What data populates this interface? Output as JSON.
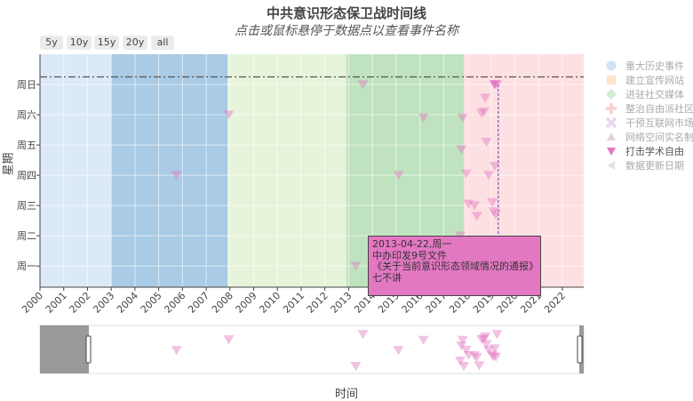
{
  "title": "中共意识形态保卫战时间线",
  "subtitle": "点击或鼠标悬停于数据点以查看事件名称",
  "range_buttons": [
    "5y",
    "10y",
    "15y",
    "20y",
    "all"
  ],
  "legend": [
    {
      "label": "重大历史事件",
      "symbol": "circle",
      "color": "#a8c8e8"
    },
    {
      "label": "建立宣传网站",
      "symbol": "square",
      "color": "#ffcc99"
    },
    {
      "label": "进驻社交媒体",
      "symbol": "diamond",
      "color": "#a9dca9"
    },
    {
      "label": "整治自由派社区",
      "symbol": "cross",
      "color": "#f4a9a9"
    },
    {
      "label": "干预互联网市场",
      "symbol": "x",
      "color": "#c9b3e0"
    },
    {
      "label": "网络空间实名制",
      "symbol": "triangle-up",
      "color": "#c9aaa5"
    },
    {
      "label": "打击学术自由",
      "symbol": "triangle-down",
      "color": "#e377c2"
    },
    {
      "label": "数据更新日期",
      "symbol": "triangle-left",
      "color": "#c8c8c8"
    }
  ],
  "tooltip": {
    "line1": "2013-04-22,周一",
    "line2": "中办印发9号文件",
    "line3": "《关于当前意识形态领域情况的通报》",
    "line4": "七不讲"
  },
  "chart_data": {
    "type": "scatter",
    "title": "中共意识形态保卫战时间线",
    "subtitle": "点击或鼠标悬停于数据点以查看事件名称",
    "xlabel": "时间",
    "ylabel": "星期",
    "x_ticks": [
      "2000",
      "2001",
      "2002",
      "2003",
      "2004",
      "2005",
      "2006",
      "2007",
      "2008",
      "2009",
      "2010",
      "2011",
      "2012",
      "2013",
      "2014",
      "2015",
      "2016",
      "2017",
      "2018",
      "2019",
      "2020",
      "2021",
      "2022"
    ],
    "y_ticks": [
      "周一",
      "周二",
      "周三",
      "周四",
      "周五",
      "周六",
      "周日"
    ],
    "xlim": [
      2000.0,
      2022.9
    ],
    "ylim": [
      0.3,
      8.0
    ],
    "grid": true,
    "legend_position": "right",
    "bands": [
      {
        "x0": 2000.0,
        "x1": 2003.0,
        "color": "#dce9f7"
      },
      {
        "x0": 2003.0,
        "x1": 2007.9,
        "color": "#a9cbe5"
      },
      {
        "x0": 2007.9,
        "x1": 2012.9,
        "color": "#e6f4da"
      },
      {
        "x0": 2012.9,
        "x1": 2017.85,
        "color": "#bfe3bf"
      },
      {
        "x0": 2017.85,
        "x1": 2022.9,
        "color": "#fde0e2"
      }
    ],
    "reference_line_y": 7.25,
    "series": [
      {
        "name": "打击学术自由",
        "marker": "triangle-down",
        "color": "#e377c2",
        "points": [
          {
            "x": 2005.75,
            "y": 4
          },
          {
            "x": 2007.95,
            "y": 6
          },
          {
            "x": 2013.3,
            "y": 1
          },
          {
            "x": 2013.6,
            "y": 7
          },
          {
            "x": 2015.1,
            "y": 4
          },
          {
            "x": 2016.15,
            "y": 5.9
          },
          {
            "x": 2017.7,
            "y": 2
          },
          {
            "x": 2017.75,
            "y": 4.85
          },
          {
            "x": 2017.8,
            "y": 5.9
          },
          {
            "x": 2017.85,
            "y": 1
          },
          {
            "x": 2017.95,
            "y": 4.05
          },
          {
            "x": 2018.05,
            "y": 3.05
          },
          {
            "x": 2018.3,
            "y": 3
          },
          {
            "x": 2018.4,
            "y": 2.65
          },
          {
            "x": 2018.5,
            "y": 1.1
          },
          {
            "x": 2018.6,
            "y": 6.05
          },
          {
            "x": 2018.7,
            "y": 6.1
          },
          {
            "x": 2018.75,
            "y": 6.55
          },
          {
            "x": 2018.8,
            "y": 5.1
          },
          {
            "x": 2018.9,
            "y": 4
          },
          {
            "x": 2019.05,
            "y": 3.1
          },
          {
            "x": 2019.1,
            "y": 2.8
          },
          {
            "x": 2019.15,
            "y": 4.3
          },
          {
            "x": 2019.2,
            "y": 2.7
          },
          {
            "x": 2019.25,
            "y": 7
          }
        ]
      }
    ],
    "hover_point": {
      "x": 2019.3,
      "y": 7.0
    }
  }
}
